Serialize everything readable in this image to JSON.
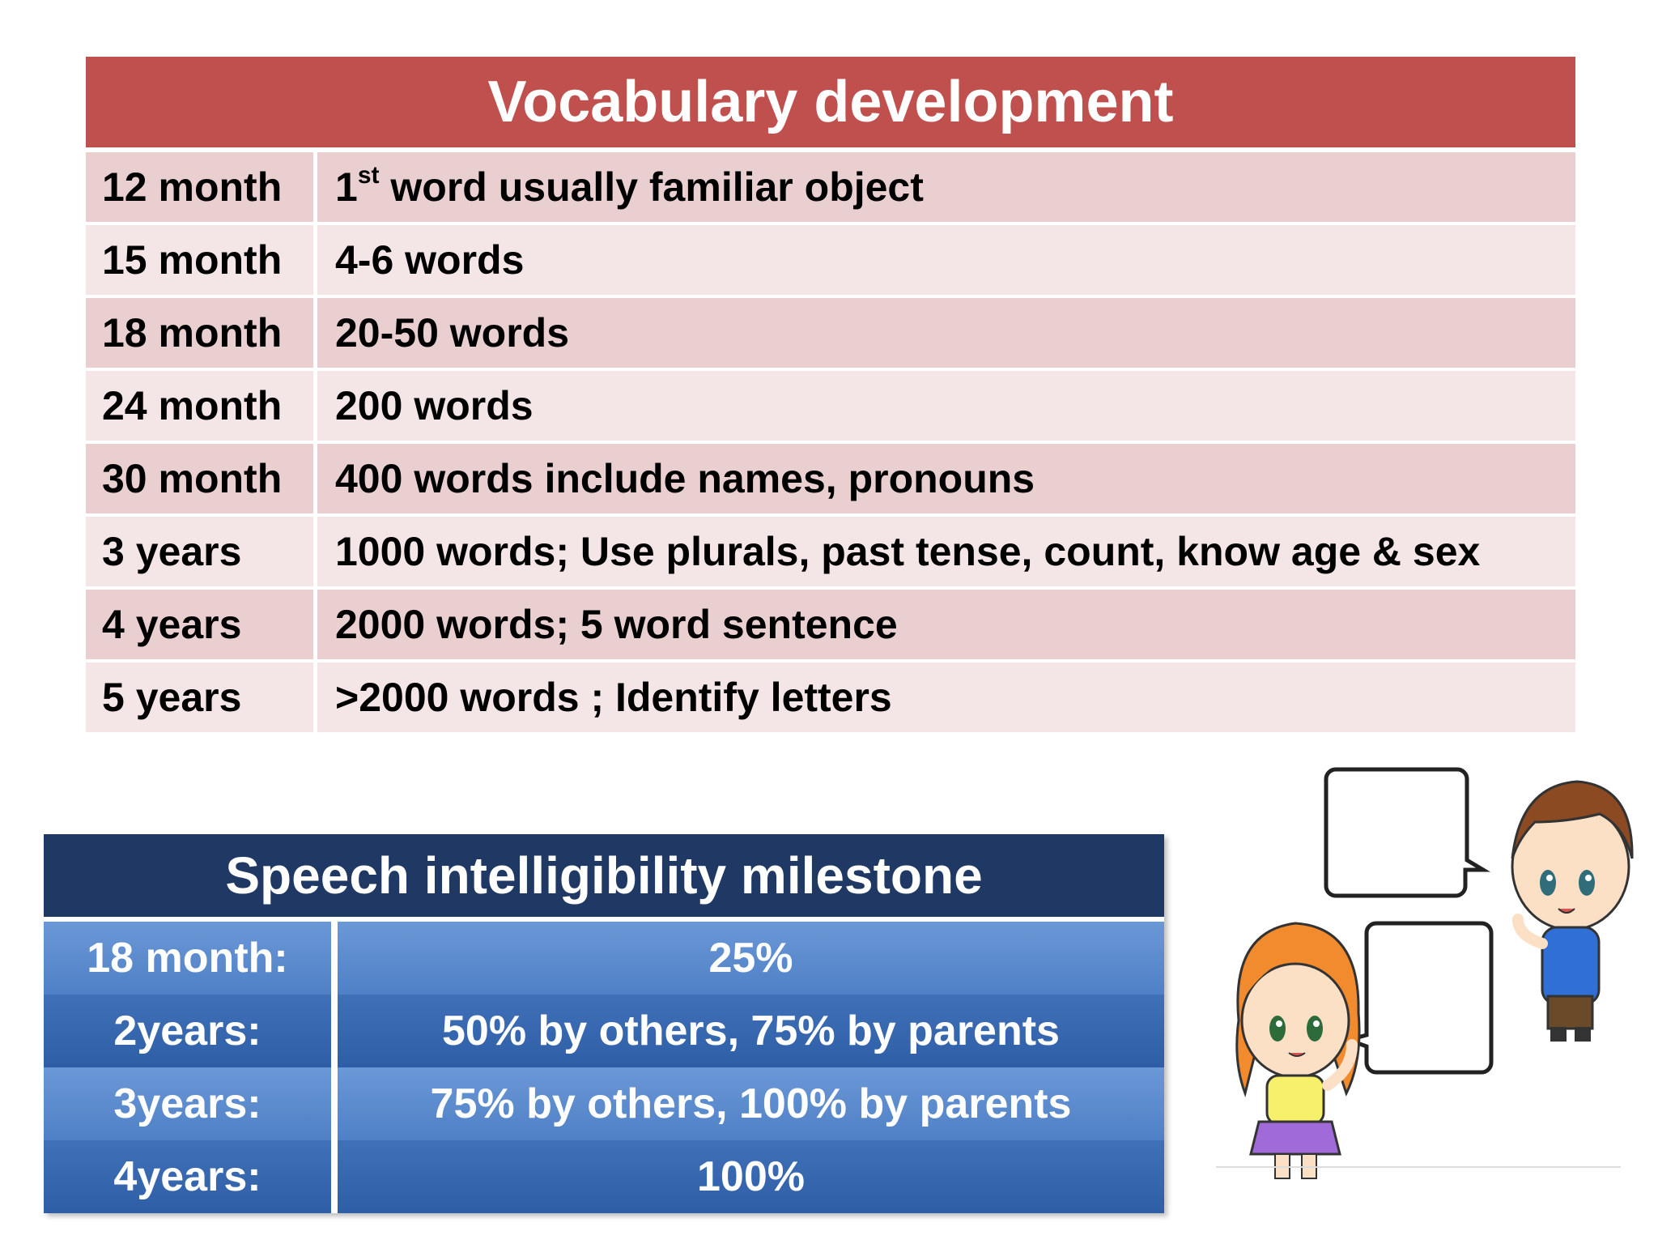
{
  "vocab": {
    "title": "Vocabulary development",
    "rows": [
      {
        "age": "12 month",
        "num": "1",
        "sup": "st",
        "text": " word usually familiar object"
      },
      {
        "age": "15 month",
        "text": "4-6 words"
      },
      {
        "age": "18 month",
        "text": "20-50 words"
      },
      {
        "age": "24 month",
        "text": "200 words"
      },
      {
        "age": "30 month",
        "text": "400 words include names, pronouns"
      },
      {
        "age": "3 years",
        "text": "1000 words; Use plurals, past tense, count, know age & sex"
      },
      {
        "age": "4 years",
        "text": "2000 words; 5 word sentence"
      },
      {
        "age": "5 years",
        "text": ">2000 words ; Identify letters"
      }
    ]
  },
  "speech": {
    "title": "Speech intelligibility milestone",
    "rows": [
      {
        "age": "18 month:",
        "value": "25%"
      },
      {
        "age": "2years:",
        "value": "50% by others, 75% by parents"
      },
      {
        "age": "3years:",
        "value": "75% by others, 100% by parents"
      },
      {
        "age": "4years:",
        "value": "100%"
      }
    ]
  },
  "colors": {
    "vocab_header": "#c0504d",
    "speech_header": "#1f3864"
  },
  "illustration": {
    "icon": "two-kids-talking-speech-bubbles"
  }
}
